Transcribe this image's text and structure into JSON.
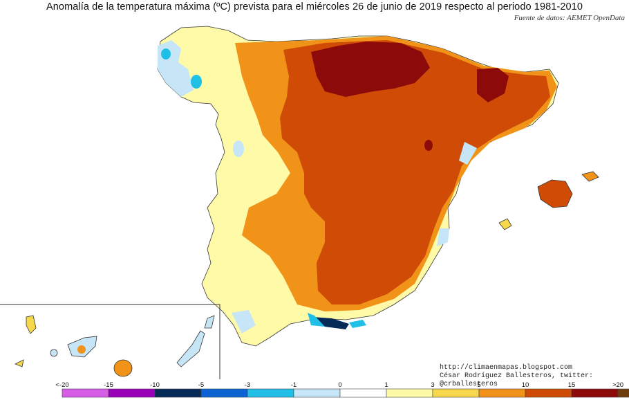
{
  "title": "Anomalía de la temperatura máxima (ºC) prevista para el miércoles 26 de junio de 2019 respecto al periodo 1981-2010",
  "source": "Fuente de datos: AEMET OpenData",
  "credits": {
    "url": "http://climaenmapas.blogspot.com",
    "author": "César Rodríguez Ballesteros, twitter: @crballesteros"
  },
  "legend": {
    "ticks": [
      "<-20",
      "-15",
      "-10",
      "-5",
      "-3",
      "-1",
      "0",
      "1",
      "3",
      "5",
      "10",
      "15",
      ">20"
    ],
    "colors": [
      "#d65ee6",
      "#9a00b8",
      "#062a57",
      "#0b63d6",
      "#20bfe6",
      "#c6e6f8",
      "#ffffff",
      "#fffaa8",
      "#f6d84a",
      "#f19319",
      "#cf4b06",
      "#8c0a0a",
      "#6b3d0e"
    ]
  },
  "palette": {
    "light_blue": "#c6e6f8",
    "cyan": "#20bfe6",
    "pale_yellow": "#fffaa8",
    "yellow": "#f6d84a",
    "orange": "#f19319",
    "red_orange": "#cf4b06",
    "dark_red": "#8c0a0a",
    "navy": "#062a57"
  }
}
